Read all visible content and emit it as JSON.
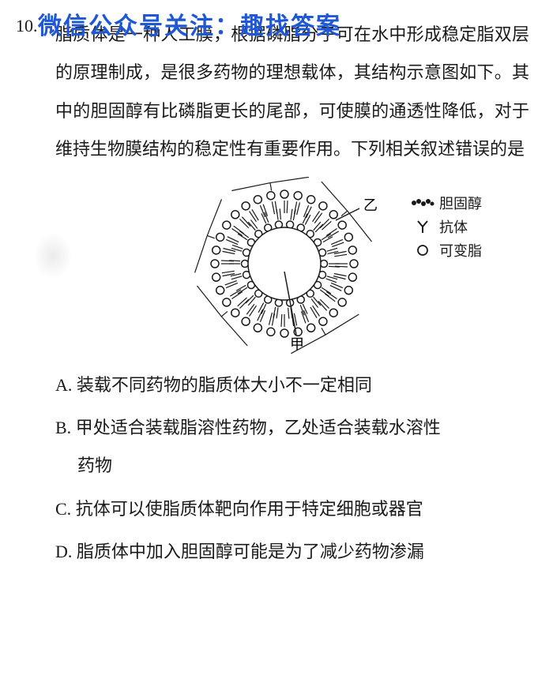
{
  "question": {
    "number": "10.",
    "stem": "脂质体是一种人工膜，根据磷脂分子可在水中形成稳定脂双层的原理制成，是很多药物的理想载体，其结构示意图如下。其中的胆固醇有比磷脂更长的尾部，可使膜的通透性降低，对于维持生物膜结构的稳定性有重要作用。下列相关叙述错误的是"
  },
  "watermark": "微信公众号关注：趣找答案",
  "diagram": {
    "label_inner": "甲",
    "label_outer": "乙",
    "legend": {
      "cholesterol": "胆固醇",
      "antibody": "抗体",
      "lipid": "可变脂"
    },
    "colors": {
      "stroke": "#1a1a1a",
      "fill": "#ffffff"
    }
  },
  "options": {
    "A": "装载不同药物的脂质体大小不一定相同",
    "B": "甲处适合装载脂溶性药物，乙处适合装载水溶性药物",
    "B_tail": "药物",
    "B_head": "甲处适合装载脂溶性药物，乙处适合装载水溶性",
    "C": "抗体可以使脂质体靶向作用于特定细胞或器官",
    "D": "脂质体中加入胆固醇可能是为了减少药物渗漏"
  }
}
